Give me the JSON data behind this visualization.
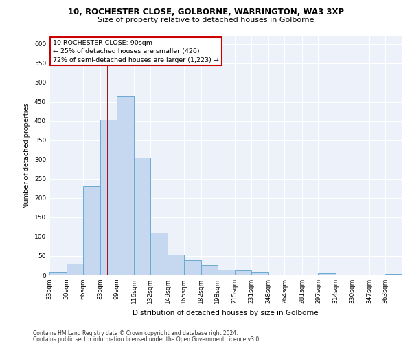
{
  "title_line1": "10, ROCHESTER CLOSE, GOLBORNE, WARRINGTON, WA3 3XP",
  "title_line2": "Size of property relative to detached houses in Golborne",
  "xlabel": "Distribution of detached houses by size in Golborne",
  "ylabel": "Number of detached properties",
  "footer_line1": "Contains HM Land Registry data © Crown copyright and database right 2024.",
  "footer_line2": "Contains public sector information licensed under the Open Government Licence v3.0.",
  "annotation_line1": "10 ROCHESTER CLOSE: 90sqm",
  "annotation_line2": "← 25% of detached houses are smaller (426)",
  "annotation_line3": "72% of semi-detached houses are larger (1,223) →",
  "bar_color": "#c5d8f0",
  "bar_edge_color": "#6aaad4",
  "vline_color": "#990000",
  "vline_x": 90,
  "categories": [
    "33sqm",
    "50sqm",
    "66sqm",
    "83sqm",
    "99sqm",
    "116sqm",
    "132sqm",
    "149sqm",
    "165sqm",
    "182sqm",
    "198sqm",
    "215sqm",
    "231sqm",
    "248sqm",
    "264sqm",
    "281sqm",
    "297sqm",
    "314sqm",
    "330sqm",
    "347sqm",
    "363sqm"
  ],
  "bin_edges": [
    33,
    50,
    66,
    83,
    99,
    116,
    132,
    149,
    165,
    182,
    198,
    215,
    231,
    248,
    264,
    281,
    297,
    314,
    330,
    347,
    363,
    379
  ],
  "values": [
    7,
    30,
    230,
    403,
    463,
    305,
    110,
    53,
    40,
    27,
    14,
    12,
    7,
    0,
    0,
    0,
    5,
    0,
    0,
    0,
    3
  ],
  "ylim": [
    0,
    620
  ],
  "yticks": [
    0,
    50,
    100,
    150,
    200,
    250,
    300,
    350,
    400,
    450,
    500,
    550,
    600
  ],
  "background_color": "#edf2fa",
  "grid_color": "#ffffff",
  "box_color": "#cc0000",
  "fig_width": 6.0,
  "fig_height": 5.0
}
